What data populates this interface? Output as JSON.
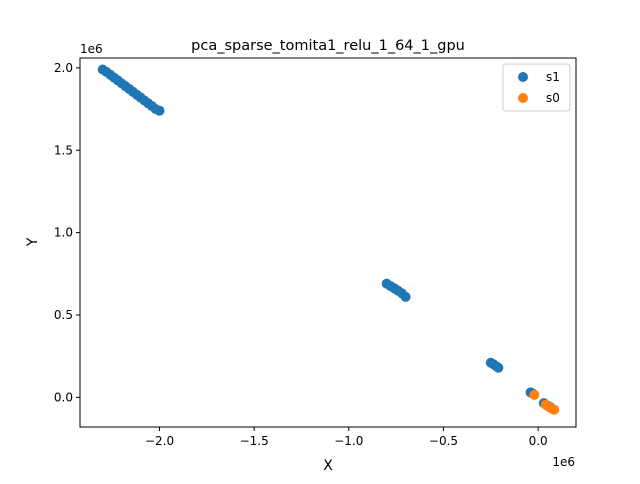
{
  "chart_data": {
    "type": "scatter",
    "title": "pca_sparse_tomita1_relu_1_64_1_gpu",
    "xlabel": "X",
    "ylabel": "Y",
    "x_offset_label": "1e6",
    "y_offset_label": "1e6",
    "xlim": [
      -2.42,
      0.2
    ],
    "ylim": [
      -0.18,
      2.06
    ],
    "xticks": [
      -2.0,
      -1.5,
      -1.0,
      -0.5,
      0.0
    ],
    "xtick_labels": [
      "−2.0",
      "−1.5",
      "−1.0",
      "−0.5",
      "0.0"
    ],
    "yticks": [
      0.0,
      0.5,
      1.0,
      1.5,
      2.0
    ],
    "ytick_labels": [
      "0.0",
      "0.5",
      "1.0",
      "1.5",
      "2.0"
    ],
    "grid": false,
    "legend_position": "top-right",
    "series": [
      {
        "name": "s1",
        "color": "#1f77b4",
        "points": [
          [
            -2.3,
            1.99
          ],
          [
            -2.28,
            1.975
          ],
          [
            -2.26,
            1.958
          ],
          [
            -2.24,
            1.941
          ],
          [
            -2.22,
            1.924
          ],
          [
            -2.2,
            1.906
          ],
          [
            -2.18,
            1.889
          ],
          [
            -2.16,
            1.872
          ],
          [
            -2.14,
            1.854
          ],
          [
            -2.12,
            1.837
          ],
          [
            -2.1,
            1.82
          ],
          [
            -2.08,
            1.802
          ],
          [
            -2.06,
            1.785
          ],
          [
            -2.04,
            1.768
          ],
          [
            -2.02,
            1.75
          ],
          [
            -2.0,
            1.74
          ],
          [
            -0.8,
            0.69
          ],
          [
            -0.78,
            0.676
          ],
          [
            -0.76,
            0.662
          ],
          [
            -0.74,
            0.647
          ],
          [
            -0.72,
            0.632
          ],
          [
            -0.7,
            0.61
          ],
          [
            -0.25,
            0.21
          ],
          [
            -0.235,
            0.2
          ],
          [
            -0.22,
            0.188
          ],
          [
            -0.21,
            0.18
          ],
          [
            -0.04,
            0.03
          ],
          [
            -0.025,
            0.02
          ],
          [
            0.03,
            -0.035
          ],
          [
            0.05,
            -0.05
          ],
          [
            0.065,
            -0.06
          ]
        ]
      },
      {
        "name": "s0",
        "color": "#ff7f0e",
        "points": [
          [
            -0.02,
            0.015
          ],
          [
            0.04,
            -0.045
          ],
          [
            0.06,
            -0.06
          ],
          [
            0.075,
            -0.07
          ],
          [
            0.085,
            -0.075
          ]
        ]
      }
    ]
  }
}
